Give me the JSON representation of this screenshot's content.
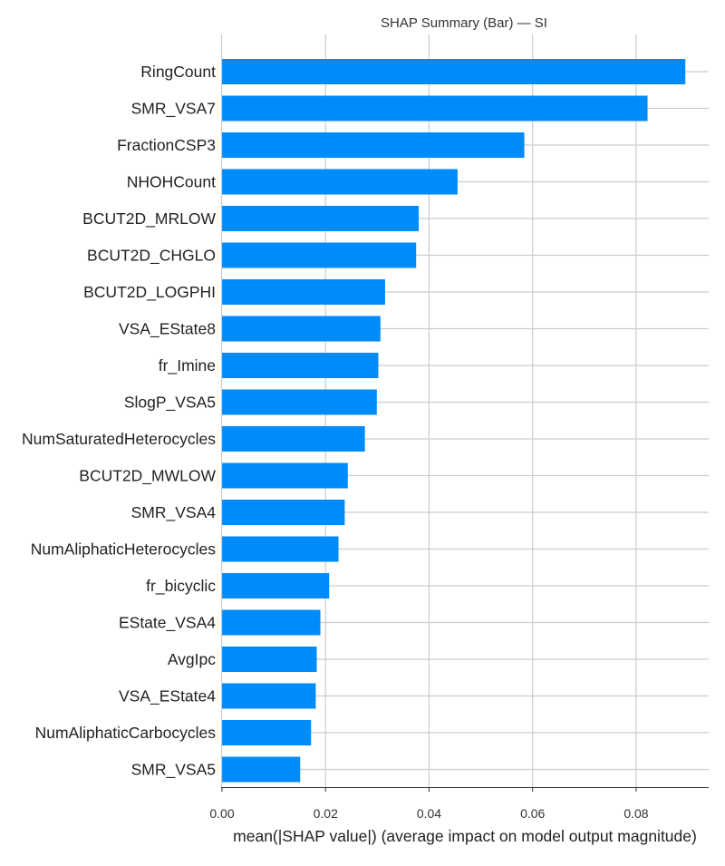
{
  "chart_data": {
    "type": "bar",
    "orientation": "horizontal",
    "title": "SHAP Summary (Bar) — SI",
    "xlabel": "mean(|SHAP value|) (average impact on model output magnitude)",
    "ylabel": "",
    "xlim": [
      0,
      0.093
    ],
    "xticks": [
      "0.00",
      "0.02",
      "0.04",
      "0.06",
      "0.08"
    ],
    "grid": true,
    "bar_color": "#008bfb",
    "grid_color": "#cccccc",
    "categories": [
      "RingCount",
      "SMR_VSA7",
      "FractionCSP3",
      "NHOHCount",
      "BCUT2D_MRLOW",
      "BCUT2D_CHGLO",
      "BCUT2D_LOGPHI",
      "VSA_EState8",
      "fr_Imine",
      "SlogP_VSA5",
      "NumSaturatedHeterocycles",
      "BCUT2D_MWLOW",
      "SMR_VSA4",
      "NumAliphaticHeterocycles",
      "fr_bicyclic",
      "EState_VSA4",
      "AvgIpc",
      "VSA_EState4",
      "NumAliphaticCarbocycles",
      "SMR_VSA5"
    ],
    "values": [
      0.0895,
      0.0822,
      0.0584,
      0.0455,
      0.038,
      0.0375,
      0.0315,
      0.0306,
      0.0302,
      0.0299,
      0.0276,
      0.0243,
      0.0237,
      0.0225,
      0.0207,
      0.019,
      0.0183,
      0.0181,
      0.0172,
      0.0151
    ]
  }
}
